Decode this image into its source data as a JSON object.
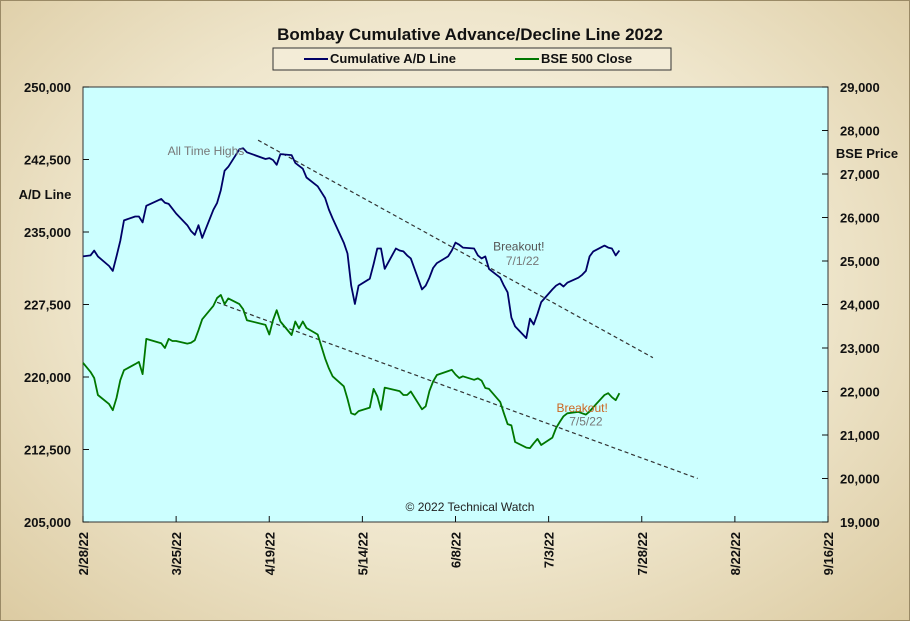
{
  "chart_data": {
    "type": "line",
    "title": "Bombay  Cumulative  Advance/Decline  Line  2022",
    "ylabel_left": "A/D Line",
    "ylabel_right": "BSE Price",
    "copyright": "© 2022  Technical  Watch",
    "ylim_left": [
      205000,
      250000
    ],
    "ylim_right": [
      19000,
      29000
    ],
    "y_ticks_left": [
      "205,000",
      "212,500",
      "220,000",
      "227,500",
      "235,000",
      "242,500",
      "250,000"
    ],
    "y_ticks_right": [
      "19,000",
      "20,000",
      "21,000",
      "22,000",
      "23,000",
      "24,000",
      "25,000",
      "26,000",
      "27,000",
      "28,000",
      "29,000"
    ],
    "x_range": [
      "2022-02-28",
      "2022-09-16"
    ],
    "x_ticks": [
      "2/28/22",
      "3/25/22",
      "4/19/22",
      "5/14/22",
      "6/8/22",
      "7/3/22",
      "7/28/22",
      "8/22/22",
      "9/16/22"
    ],
    "grid": false,
    "background_color": "#ccffff",
    "legend_position": "top-center",
    "series": [
      {
        "name": "Cumulative A/D Line",
        "axis": "left",
        "color": "#000066",
        "points": [
          [
            "2022-02-28",
            232480
          ],
          [
            "2022-03-02",
            232580
          ],
          [
            "2022-03-03",
            233080
          ],
          [
            "2022-03-04",
            232480
          ],
          [
            "2022-03-07",
            231480
          ],
          [
            "2022-03-08",
            230980
          ],
          [
            "2022-03-09",
            232480
          ],
          [
            "2022-03-10",
            234090
          ],
          [
            "2022-03-11",
            236200
          ],
          [
            "2022-03-14",
            236600
          ],
          [
            "2022-03-15",
            236600
          ],
          [
            "2022-03-16",
            235990
          ],
          [
            "2022-03-17",
            237710
          ],
          [
            "2022-03-21",
            238420
          ],
          [
            "2022-03-22",
            238020
          ],
          [
            "2022-03-23",
            237910
          ],
          [
            "2022-03-24",
            237410
          ],
          [
            "2022-03-25",
            236910
          ],
          [
            "2022-03-28",
            235700
          ],
          [
            "2022-03-29",
            235100
          ],
          [
            "2022-03-30",
            234700
          ],
          [
            "2022-03-31",
            235700
          ],
          [
            "2022-04-01",
            234390
          ],
          [
            "2022-04-04",
            237310
          ],
          [
            "2022-04-05",
            238010
          ],
          [
            "2022-04-06",
            239320
          ],
          [
            "2022-04-07",
            241340
          ],
          [
            "2022-04-08",
            241740
          ],
          [
            "2022-04-11",
            243560
          ],
          [
            "2022-04-12",
            243660
          ],
          [
            "2022-04-13",
            243250
          ],
          [
            "2022-04-18",
            242550
          ],
          [
            "2022-04-19",
            242650
          ],
          [
            "2022-04-20",
            242450
          ],
          [
            "2022-04-21",
            241950
          ],
          [
            "2022-04-22",
            243060
          ],
          [
            "2022-04-25",
            242950
          ],
          [
            "2022-04-26",
            242150
          ],
          [
            "2022-04-27",
            241850
          ],
          [
            "2022-04-28",
            241550
          ],
          [
            "2022-04-29",
            240640
          ],
          [
            "2022-05-02",
            239730
          ],
          [
            "2022-05-04",
            238520
          ],
          [
            "2022-05-05",
            237320
          ],
          [
            "2022-05-06",
            236410
          ],
          [
            "2022-05-09",
            233890
          ],
          [
            "2022-05-10",
            232780
          ],
          [
            "2022-05-11",
            229460
          ],
          [
            "2022-05-12",
            227550
          ],
          [
            "2022-05-13",
            229460
          ],
          [
            "2022-05-16",
            230170
          ],
          [
            "2022-05-17",
            231680
          ],
          [
            "2022-05-18",
            233290
          ],
          [
            "2022-05-19",
            233290
          ],
          [
            "2022-05-20",
            231180
          ],
          [
            "2022-05-23",
            233290
          ],
          [
            "2022-05-24",
            233090
          ],
          [
            "2022-05-25",
            232990
          ],
          [
            "2022-05-26",
            232580
          ],
          [
            "2022-05-27",
            232270
          ],
          [
            "2022-05-30",
            229060
          ],
          [
            "2022-05-31",
            229460
          ],
          [
            "2022-06-01",
            230270
          ],
          [
            "2022-06-02",
            231280
          ],
          [
            "2022-06-03",
            231780
          ],
          [
            "2022-06-06",
            232480
          ],
          [
            "2022-06-07",
            233090
          ],
          [
            "2022-06-08",
            233900
          ],
          [
            "2022-06-09",
            233690
          ],
          [
            "2022-06-10",
            233390
          ],
          [
            "2022-06-13",
            233290
          ],
          [
            "2022-06-14",
            232580
          ],
          [
            "2022-06-15",
            232270
          ],
          [
            "2022-06-16",
            232480
          ],
          [
            "2022-06-17",
            231180
          ],
          [
            "2022-06-20",
            230270
          ],
          [
            "2022-06-21",
            229460
          ],
          [
            "2022-06-22",
            228760
          ],
          [
            "2022-06-23",
            226140
          ],
          [
            "2022-06-24",
            225230
          ],
          [
            "2022-06-27",
            224020
          ],
          [
            "2022-06-28",
            226040
          ],
          [
            "2022-06-29",
            225430
          ],
          [
            "2022-06-30",
            226540
          ],
          [
            "2022-07-01",
            227750
          ],
          [
            "2022-07-04",
            229060
          ],
          [
            "2022-07-05",
            229460
          ],
          [
            "2022-07-06",
            229670
          ],
          [
            "2022-07-07",
            229360
          ],
          [
            "2022-07-08",
            229760
          ],
          [
            "2022-07-11",
            230270
          ],
          [
            "2022-07-12",
            230570
          ],
          [
            "2022-07-13",
            230980
          ],
          [
            "2022-07-14",
            232480
          ],
          [
            "2022-07-15",
            232990
          ],
          [
            "2022-07-18",
            233590
          ],
          [
            "2022-07-19",
            233390
          ],
          [
            "2022-07-20",
            233290
          ],
          [
            "2022-07-21",
            232580
          ],
          [
            "2022-07-22",
            233090
          ]
        ]
      },
      {
        "name": "BSE 500 Close",
        "axis": "right",
        "color": "#007700",
        "points": [
          [
            "2022-02-28",
            22660
          ],
          [
            "2022-03-02",
            22450
          ],
          [
            "2022-03-03",
            22310
          ],
          [
            "2022-03-04",
            21920
          ],
          [
            "2022-03-07",
            21710
          ],
          [
            "2022-03-08",
            21570
          ],
          [
            "2022-03-09",
            21850
          ],
          [
            "2022-03-10",
            22260
          ],
          [
            "2022-03-11",
            22490
          ],
          [
            "2022-03-14",
            22630
          ],
          [
            "2022-03-15",
            22680
          ],
          [
            "2022-03-16",
            22400
          ],
          [
            "2022-03-17",
            23210
          ],
          [
            "2022-03-21",
            23110
          ],
          [
            "2022-03-22",
            23000
          ],
          [
            "2022-03-23",
            23210
          ],
          [
            "2022-03-24",
            23160
          ],
          [
            "2022-03-25",
            23160
          ],
          [
            "2022-03-28",
            23100
          ],
          [
            "2022-03-29",
            23120
          ],
          [
            "2022-03-30",
            23180
          ],
          [
            "2022-03-31",
            23410
          ],
          [
            "2022-04-01",
            23660
          ],
          [
            "2022-04-04",
            23970
          ],
          [
            "2022-04-05",
            24150
          ],
          [
            "2022-04-06",
            24220
          ],
          [
            "2022-04-07",
            24010
          ],
          [
            "2022-04-08",
            24140
          ],
          [
            "2022-04-11",
            24010
          ],
          [
            "2022-04-12",
            23890
          ],
          [
            "2022-04-13",
            23640
          ],
          [
            "2022-04-18",
            23530
          ],
          [
            "2022-04-19",
            23310
          ],
          [
            "2022-04-20",
            23640
          ],
          [
            "2022-04-21",
            23870
          ],
          [
            "2022-04-22",
            23610
          ],
          [
            "2022-04-25",
            23300
          ],
          [
            "2022-04-26",
            23610
          ],
          [
            "2022-04-27",
            23450
          ],
          [
            "2022-04-28",
            23610
          ],
          [
            "2022-04-29",
            23460
          ],
          [
            "2022-05-02",
            23310
          ],
          [
            "2022-05-04",
            22760
          ],
          [
            "2022-05-05",
            22530
          ],
          [
            "2022-05-06",
            22350
          ],
          [
            "2022-05-09",
            22120
          ],
          [
            "2022-05-10",
            21830
          ],
          [
            "2022-05-11",
            21500
          ],
          [
            "2022-05-12",
            21470
          ],
          [
            "2022-05-13",
            21550
          ],
          [
            "2022-05-16",
            21630
          ],
          [
            "2022-05-17",
            22060
          ],
          [
            "2022-05-18",
            21890
          ],
          [
            "2022-05-19",
            21580
          ],
          [
            "2022-05-20",
            22090
          ],
          [
            "2022-05-23",
            22030
          ],
          [
            "2022-05-24",
            22010
          ],
          [
            "2022-05-25",
            21920
          ],
          [
            "2022-05-26",
            21920
          ],
          [
            "2022-05-27",
            22000
          ],
          [
            "2022-05-30",
            21590
          ],
          [
            "2022-05-31",
            21660
          ],
          [
            "2022-06-01",
            22010
          ],
          [
            "2022-06-02",
            22230
          ],
          [
            "2022-06-03",
            22380
          ],
          [
            "2022-06-06",
            22470
          ],
          [
            "2022-06-07",
            22500
          ],
          [
            "2022-06-08",
            22390
          ],
          [
            "2022-06-09",
            22310
          ],
          [
            "2022-06-10",
            22350
          ],
          [
            "2022-06-13",
            22270
          ],
          [
            "2022-06-14",
            22300
          ],
          [
            "2022-06-15",
            22250
          ],
          [
            "2022-06-16",
            22080
          ],
          [
            "2022-06-17",
            22060
          ],
          [
            "2022-06-20",
            21760
          ],
          [
            "2022-06-21",
            21500
          ],
          [
            "2022-06-22",
            21250
          ],
          [
            "2022-06-23",
            21220
          ],
          [
            "2022-06-24",
            20840
          ],
          [
            "2022-06-27",
            20710
          ],
          [
            "2022-06-28",
            20700
          ],
          [
            "2022-06-29",
            20810
          ],
          [
            "2022-06-30",
            20910
          ],
          [
            "2022-07-01",
            20770
          ],
          [
            "2022-07-04",
            20940
          ],
          [
            "2022-07-05",
            21160
          ],
          [
            "2022-07-06",
            21300
          ],
          [
            "2022-07-07",
            21430
          ],
          [
            "2022-07-08",
            21500
          ],
          [
            "2022-07-11",
            21530
          ],
          [
            "2022-07-12",
            21500
          ],
          [
            "2022-07-13",
            21470
          ],
          [
            "2022-07-14",
            21540
          ],
          [
            "2022-07-15",
            21640
          ],
          [
            "2022-07-18",
            21920
          ],
          [
            "2022-07-19",
            21960
          ],
          [
            "2022-07-20",
            21870
          ],
          [
            "2022-07-21",
            21800
          ],
          [
            "2022-07-22",
            21960
          ]
        ]
      }
    ],
    "trendlines": [
      {
        "axis": "left",
        "from": [
          "2022-04-16",
          244500
        ],
        "to": [
          "2022-07-31",
          222000
        ]
      },
      {
        "axis": "right",
        "from": [
          "2022-04-05",
          24050
        ],
        "to": [
          "2022-08-12",
          20000
        ]
      }
    ],
    "annotations": [
      {
        "text": "All Time Highs",
        "x": "2022-04-02",
        "y_axis": "left",
        "y": 242970,
        "color": "#777777"
      },
      {
        "text": "Breakout!",
        "x": "2022-06-25",
        "y_axis": "left",
        "y": 233080,
        "color": "#555555"
      },
      {
        "text": "7/1/22",
        "x": "2022-06-26",
        "y_axis": "left",
        "y": 231580,
        "color": "#777777"
      },
      {
        "text": "Breakout!",
        "x": "2022-07-12",
        "y_axis": "right",
        "y": 21530,
        "color": "#cc6622"
      },
      {
        "text": "7/5/22",
        "x": "2022-07-13",
        "y_axis": "right",
        "y": 21220,
        "color": "#777777"
      }
    ]
  }
}
